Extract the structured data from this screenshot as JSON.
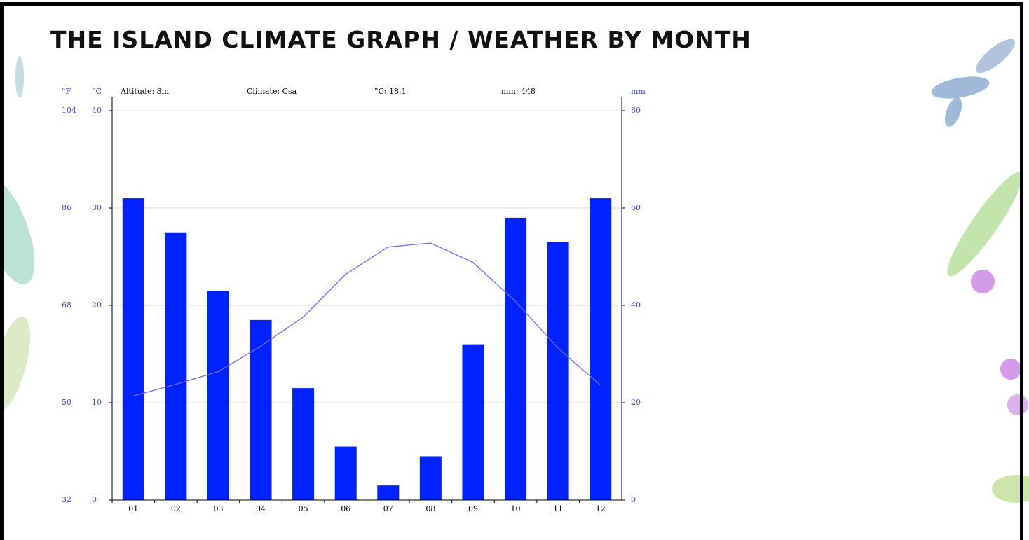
{
  "chart_data": {
    "type": "bar",
    "title": "THE ISLAND CLIMATE GRAPH / WEATHER BY MONTH",
    "header": [
      "Altitude: 3m",
      "Climate: Csa",
      "°C: 18.1",
      "mm: 448"
    ],
    "y_fahrenheit_unit": "°F",
    "y_unit": "°C",
    "y2_unit": "mm",
    "categories": [
      "01",
      "02",
      "03",
      "04",
      "05",
      "06",
      "07",
      "08",
      "09",
      "10",
      "11",
      "12"
    ],
    "series": [
      {
        "type": "bar",
        "axis": "y2",
        "color": "#0022ff",
        "values": [
          62,
          55,
          43,
          37,
          23,
          11,
          3,
          9,
          32,
          58,
          53,
          62
        ]
      },
      {
        "type": "line",
        "color": "#6b6bff",
        "values": [
          10.7,
          11.9,
          13.2,
          15.8,
          18.8,
          23.2,
          26.0,
          26.4,
          24.4,
          20.4,
          15.6,
          11.8
        ]
      }
    ],
    "ylim": [
      0,
      40
    ],
    "yticks": [
      0,
      10,
      20,
      30,
      40
    ],
    "y_fahrenheit_lim": [
      32,
      104
    ],
    "y_fahrenheit_ticks": [
      32,
      50,
      68,
      86,
      104
    ],
    "y2lim": [
      0,
      80
    ],
    "y2ticks": [
      0,
      20,
      40,
      60,
      80
    ],
    "grid": true
  }
}
